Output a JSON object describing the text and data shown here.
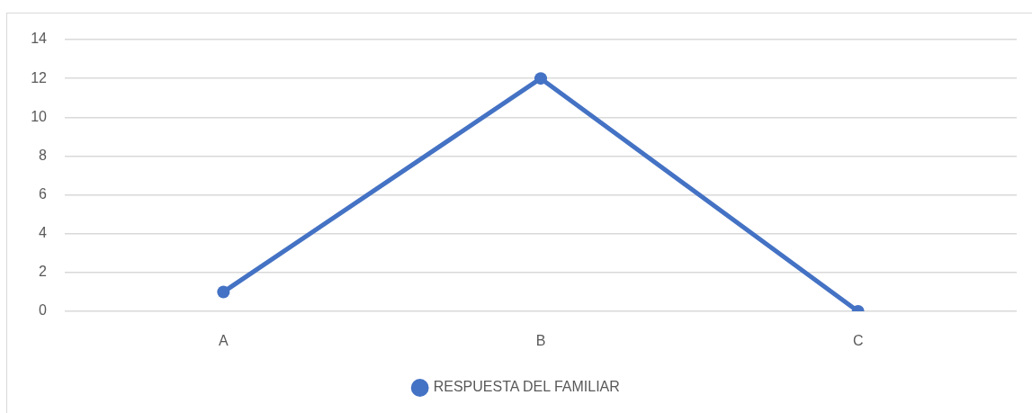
{
  "chart_data": {
    "type": "line",
    "categories": [
      "A",
      "B",
      "C"
    ],
    "series": [
      {
        "name": "RESPUESTA DEL FAMILIAR",
        "color": "#4472c4",
        "values": [
          1,
          12,
          0
        ]
      }
    ],
    "ylim": [
      0,
      14
    ],
    "yticks": [
      0,
      2,
      4,
      6,
      8,
      10,
      12,
      14
    ],
    "grid": "y",
    "legend": "bottom",
    "marker": "circle"
  }
}
